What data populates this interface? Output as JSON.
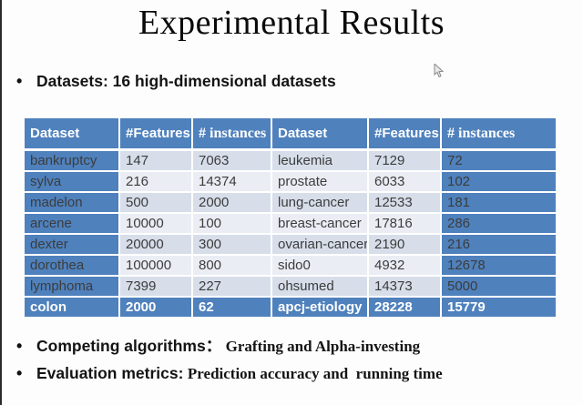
{
  "title": "Experimental Results",
  "bullets": {
    "marker": "•",
    "datasets": "Datasets: 16 high-dimensional datasets",
    "competing_label": "Competing algorithms：",
    "competing_value": "Grafting and Alpha-investing",
    "evaluation_label": "Evaluation metrics:",
    "evaluation_value": "Prediction accuracy and  running time"
  },
  "table": {
    "headers": [
      "Dataset",
      "#Features",
      "# instances",
      "Dataset",
      "#Features",
      "# instances"
    ],
    "rows": [
      [
        "bankruptcy",
        "147",
        "7063",
        "leukemia",
        "7129",
        "72"
      ],
      [
        "sylva",
        "216",
        "14374",
        "prostate",
        "6033",
        "102"
      ],
      [
        "madelon",
        "500",
        "2000",
        "lung-cancer",
        "12533",
        "181"
      ],
      [
        "arcene",
        "10000",
        "100",
        "breast-cancer",
        "17816",
        "286"
      ],
      [
        "dexter",
        "20000",
        "300",
        "ovarian-cancer",
        "2190",
        "216"
      ],
      [
        "dorothea",
        "100000",
        "800",
        "sido0",
        "4932",
        "12678"
      ],
      [
        "lymphoma",
        "7399",
        "227",
        "ohsumed",
        "14373",
        "5000"
      ],
      [
        "colon",
        "2000",
        "62",
        "apcj-etiology",
        "28228",
        "15779"
      ]
    ]
  },
  "colors": {
    "table_accent": "#4f81bd",
    "stripe_dark": "#d7deea",
    "stripe_light": "#eaedf4",
    "cell_text": "#3c3c3c",
    "header_text": "#ffffff"
  },
  "icons": {
    "cursor": "mouse-pointer"
  }
}
